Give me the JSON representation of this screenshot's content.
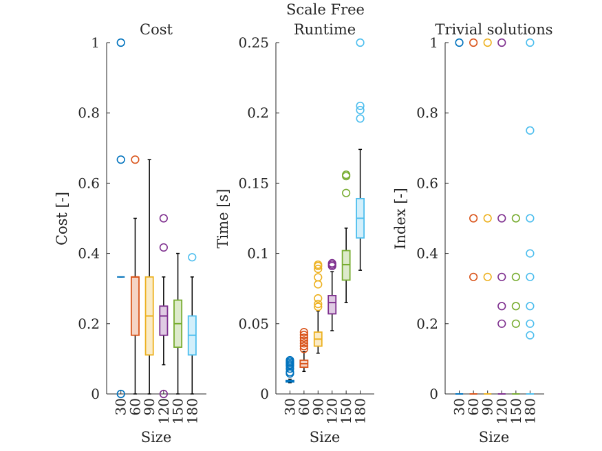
{
  "suptitle": "Scale Free",
  "colors": [
    "#0072BD",
    "#D95319",
    "#EDB120",
    "#7E2F8E",
    "#77AC30",
    "#4DBEEE"
  ],
  "chart_data": [
    {
      "type": "box",
      "title": "Cost",
      "xlabel": "Size",
      "ylabel": "Cost [-]",
      "categories": [
        "30",
        "60",
        "90",
        "120",
        "150",
        "180"
      ],
      "ylim": [
        0,
        1
      ],
      "yticks": [
        0,
        0.2,
        0.4,
        0.6,
        0.8,
        1
      ],
      "ytick_labels": [
        "0",
        "0.2",
        "0.4",
        "0.6",
        "0.8",
        "1"
      ],
      "boxes": [
        {
          "q1": 0.333,
          "median": 0.333,
          "q3": 0.333,
          "whisker_low": 0.333,
          "whisker_high": 0.333,
          "outliers": [
            0,
            0.667,
            1
          ]
        },
        {
          "q1": 0.167,
          "median": 0.333,
          "q3": 0.333,
          "whisker_low": 0,
          "whisker_high": 0.5,
          "outliers": [
            0.667
          ]
        },
        {
          "q1": 0.111,
          "median": 0.222,
          "q3": 0.333,
          "whisker_low": 0,
          "whisker_high": 0.667,
          "outliers": []
        },
        {
          "q1": 0.167,
          "median": 0.222,
          "q3": 0.25,
          "whisker_low": 0.083,
          "whisker_high": 0.333,
          "outliers": [
            0,
            0.417,
            0.5
          ]
        },
        {
          "q1": 0.133,
          "median": 0.2,
          "q3": 0.267,
          "whisker_low": 0,
          "whisker_high": 0.4,
          "outliers": []
        },
        {
          "q1": 0.111,
          "median": 0.167,
          "q3": 0.222,
          "whisker_low": 0,
          "whisker_high": 0.333,
          "outliers": [
            0.389
          ]
        }
      ]
    },
    {
      "type": "box",
      "title": "Runtime",
      "xlabel": "Size",
      "ylabel": "Time [s]",
      "categories": [
        "30",
        "60",
        "90",
        "120",
        "150",
        "180"
      ],
      "ylim": [
        0,
        0.25
      ],
      "yticks": [
        0,
        0.05,
        0.1,
        0.15,
        0.2,
        0.25
      ],
      "ytick_labels": [
        "0",
        "0.05",
        "0.1",
        "0.15",
        "0.2",
        "0.25"
      ],
      "boxes": [
        {
          "q1": 0.0085,
          "median": 0.009,
          "q3": 0.0095,
          "whisker_low": 0.008,
          "whisker_high": 0.0105,
          "outliers": [
            0.0145,
            0.0155,
            0.018,
            0.02,
            0.021,
            0.022,
            0.023,
            0.024
          ]
        },
        {
          "q1": 0.019,
          "median": 0.0215,
          "q3": 0.024,
          "whisker_low": 0.016,
          "whisker_high": 0.03,
          "outliers": [
            0.032,
            0.034,
            0.036,
            0.038,
            0.04,
            0.042,
            0.044
          ]
        },
        {
          "q1": 0.034,
          "median": 0.039,
          "q3": 0.044,
          "whisker_low": 0.029,
          "whisker_high": 0.059,
          "outliers": [
            0.062,
            0.064,
            0.068,
            0.078,
            0.083,
            0.089,
            0.091,
            0.092
          ]
        },
        {
          "q1": 0.057,
          "median": 0.065,
          "q3": 0.07,
          "whisker_low": 0.045,
          "whisker_high": 0.087,
          "outliers": [
            0.091,
            0.092,
            0.093
          ]
        },
        {
          "q1": 0.081,
          "median": 0.092,
          "q3": 0.102,
          "whisker_low": 0.065,
          "whisker_high": 0.118,
          "outliers": [
            0.143,
            0.155,
            0.156
          ]
        },
        {
          "q1": 0.111,
          "median": 0.125,
          "q3": 0.139,
          "whisker_low": 0.088,
          "whisker_high": 0.174,
          "outliers": [
            0.196,
            0.202,
            0.205,
            0.25
          ]
        }
      ]
    },
    {
      "type": "box",
      "title": "Trivial solutions",
      "xlabel": "Size",
      "ylabel": "Index [-]",
      "categories": [
        "30",
        "60",
        "90",
        "120",
        "150",
        "180"
      ],
      "ylim": [
        0,
        1
      ],
      "yticks": [
        0,
        0.2,
        0.4,
        0.6,
        0.8,
        1
      ],
      "ytick_labels": [
        "0",
        "0.2",
        "0.4",
        "0.6",
        "0.8",
        "1"
      ],
      "boxes": [
        {
          "q1": 0,
          "median": 0,
          "q3": 0,
          "whisker_low": 0,
          "whisker_high": 0,
          "outliers": [
            1
          ]
        },
        {
          "q1": 0,
          "median": 0,
          "q3": 0,
          "whisker_low": 0,
          "whisker_high": 0,
          "outliers": [
            0.333,
            0.5,
            1
          ]
        },
        {
          "q1": 0,
          "median": 0,
          "q3": 0,
          "whisker_low": 0,
          "whisker_high": 0,
          "outliers": [
            0.333,
            0.5,
            1
          ]
        },
        {
          "q1": 0,
          "median": 0,
          "q3": 0,
          "whisker_low": 0,
          "whisker_high": 0,
          "outliers": [
            0.2,
            0.25,
            0.333,
            0.5,
            1
          ]
        },
        {
          "q1": 0,
          "median": 0,
          "q3": 0,
          "whisker_low": 0,
          "whisker_high": 0,
          "outliers": [
            0.2,
            0.25,
            0.333,
            0.5
          ]
        },
        {
          "q1": 0,
          "median": 0,
          "q3": 0,
          "whisker_low": 0,
          "whisker_high": 0,
          "outliers": [
            0.167,
            0.2,
            0.25,
            0.333,
            0.4,
            0.5,
            0.75,
            1
          ]
        }
      ]
    }
  ]
}
